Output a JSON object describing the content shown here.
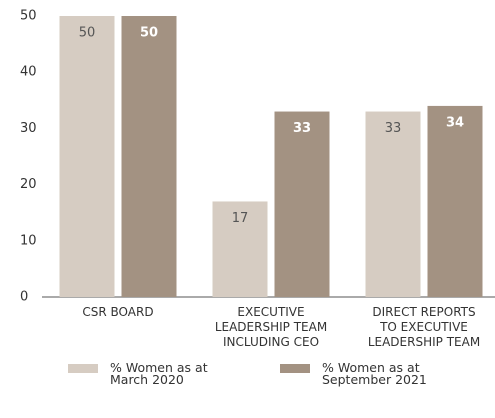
{
  "chart_data": {
    "type": "bar",
    "categories": [
      "CSR BOARD",
      "EXECUTIVE\nLEADERSHIP TEAM\nINCLUDING CEO",
      "DIRECT REPORTS\nTO EXECUTIVE\nLEADERSHIP TEAM"
    ],
    "series": [
      {
        "name": "% Women as at\nMarch 2020",
        "color": "#d6ccc2",
        "values": [
          50,
          17,
          33
        ]
      },
      {
        "name": "% Women as at\nSeptember 2021",
        "color": "#a39282",
        "values": [
          50,
          33,
          34
        ]
      }
    ],
    "ylim": [
      0,
      50
    ],
    "yticks": [
      0,
      10,
      20,
      30,
      40,
      50
    ],
    "grid": false,
    "legend": "bottom"
  }
}
